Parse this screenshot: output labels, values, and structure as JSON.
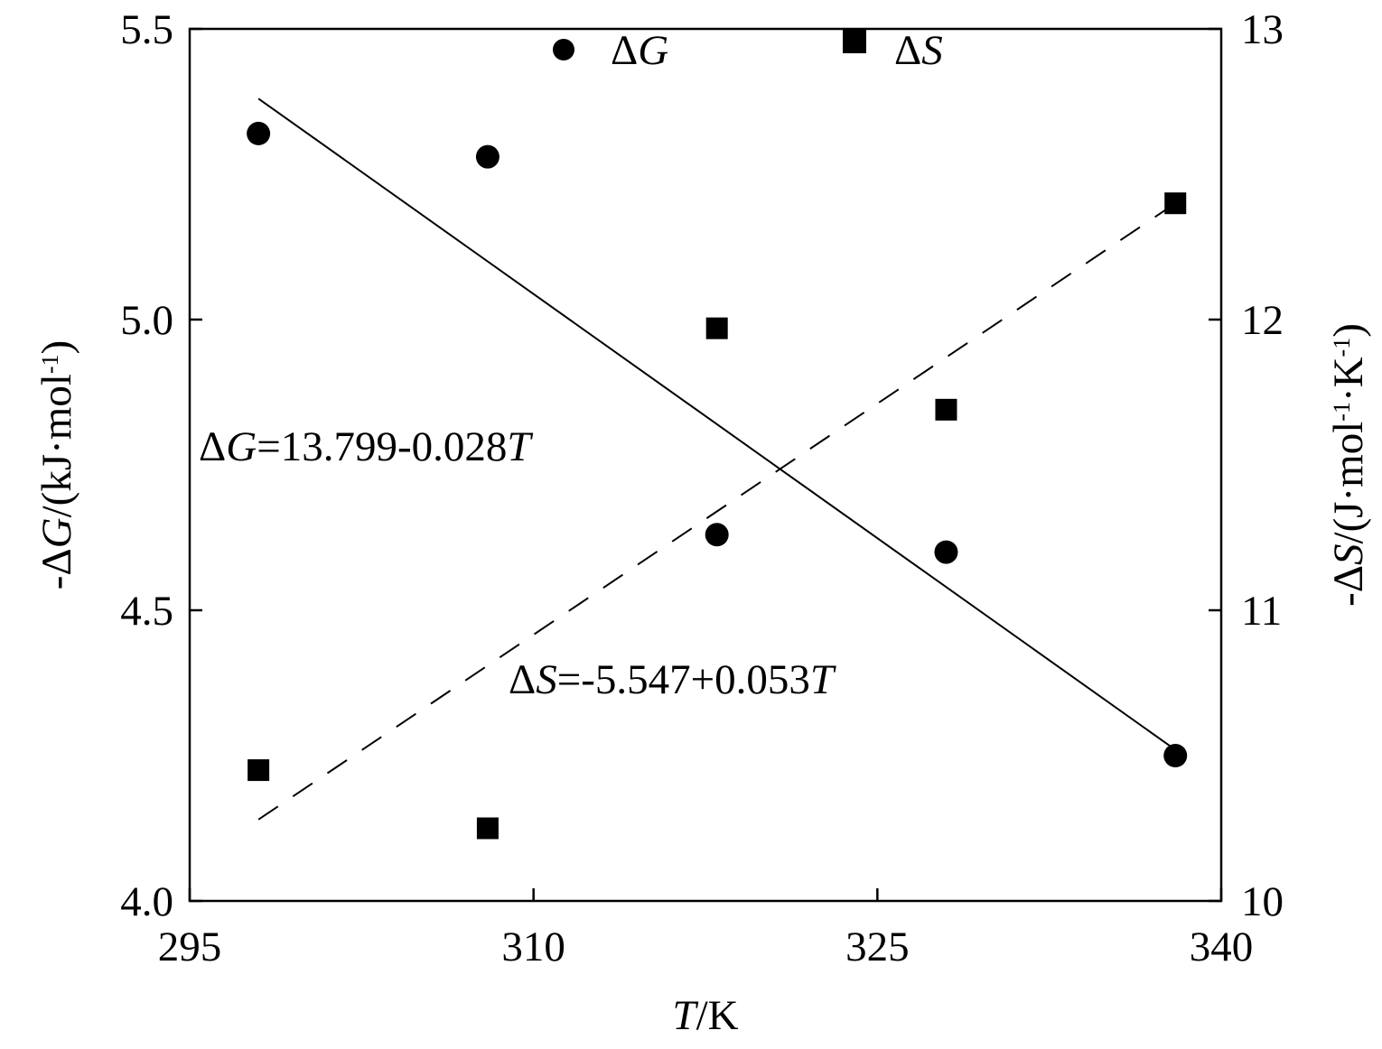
{
  "chart_data": {
    "type": "scatter",
    "x_axis": {
      "label_italic": "T",
      "label_rest": "/K",
      "range": [
        295,
        340
      ],
      "ticks": [
        295,
        310,
        325,
        340
      ],
      "tick_labels": [
        "295",
        "310",
        "325",
        "340"
      ]
    },
    "y_axis_left": {
      "label_prefix": "-Δ",
      "label_italic": "G",
      "label_mid": "/(kJ·mol",
      "label_sup": "-1",
      "label_suffix": ")",
      "range": [
        4.0,
        5.5
      ],
      "ticks": [
        4.0,
        4.5,
        5.0,
        5.5
      ],
      "tick_labels": [
        "4.0",
        "4.5",
        "5.0",
        "5.5"
      ]
    },
    "y_axis_right": {
      "label_prefix": "-Δ",
      "label_italic": "S",
      "label_mid": "/(J·mol",
      "label_sup1": "-1",
      "label_mid2": "·K",
      "label_sup2": "-1",
      "label_suffix": ")",
      "range": [
        10,
        13
      ],
      "ticks": [
        10,
        11,
        12,
        13
      ],
      "tick_labels": [
        "10",
        "11",
        "12",
        "13"
      ]
    },
    "series": [
      {
        "name_prefix": "Δ",
        "name_italic": "G",
        "marker": "circle",
        "axis": "left",
        "x": [
          298,
          308,
          318,
          328,
          338
        ],
        "y": [
          5.32,
          5.28,
          4.63,
          4.6,
          4.25
        ],
        "fit": {
          "x": [
            298,
            338
          ],
          "y": [
            5.38,
            4.26
          ],
          "style": "solid"
        }
      },
      {
        "name_prefix": "Δ",
        "name_italic": "S",
        "marker": "square",
        "axis": "right",
        "x": [
          298,
          308,
          318,
          328,
          338
        ],
        "y": [
          10.45,
          10.25,
          11.97,
          11.69,
          12.4
        ],
        "fit": {
          "x": [
            298,
            338
          ],
          "y": [
            10.28,
            12.4
          ],
          "style": "dashed"
        }
      }
    ],
    "annotations": [
      {
        "prefix": "Δ",
        "italic": "G",
        "formula": "=13.799-0.028",
        "suffix_italic": "T"
      },
      {
        "prefix": "Δ",
        "italic": "S",
        "formula": "=-5.547+0.053",
        "suffix_italic": "T"
      }
    ],
    "legend_position": "top-center",
    "grid": false
  }
}
